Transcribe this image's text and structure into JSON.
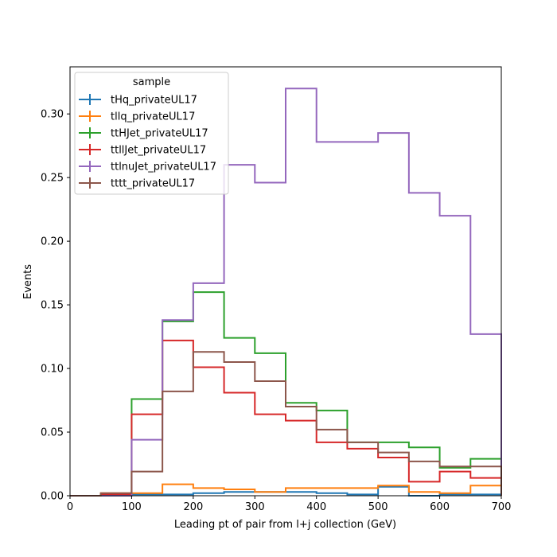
{
  "chart_data": {
    "type": "line",
    "title": "",
    "xlabel": "Leading pt of pair from l+j collection (GeV)",
    "ylabel": "Events",
    "xlim": [
      0,
      700
    ],
    "ylim": [
      0,
      0.337
    ],
    "xticks": [
      0,
      100,
      200,
      300,
      400,
      500,
      600,
      700
    ],
    "yticks": [
      0.0,
      0.05,
      0.1,
      0.15,
      0.2,
      0.25,
      0.3
    ],
    "ytick_labels": [
      "0.00",
      "0.05",
      "0.10",
      "0.15",
      "0.20",
      "0.25",
      "0.30"
    ],
    "grid": false,
    "legend": {
      "title": "sample",
      "position": "top-left"
    },
    "bin_edges": [
      0,
      50,
      100,
      150,
      200,
      250,
      300,
      350,
      400,
      450,
      500,
      550,
      600,
      650,
      700
    ],
    "series": [
      {
        "name": "tHq_privateUL17",
        "color": "#1f77b4",
        "values": [
          0.0,
          0.0,
          0.001,
          0.001,
          0.002,
          0.003,
          0.003,
          0.003,
          0.002,
          0.001,
          0.007,
          0.0,
          0.001,
          0.001
        ]
      },
      {
        "name": "tllq_privateUL17",
        "color": "#ff7f0e",
        "values": [
          0.0,
          0.002,
          0.002,
          0.009,
          0.006,
          0.005,
          0.003,
          0.006,
          0.006,
          0.006,
          0.008,
          0.003,
          0.002,
          0.008
        ]
      },
      {
        "name": "ttHJet_privateUL17",
        "color": "#2ca02c",
        "values": [
          0.0,
          0.001,
          0.076,
          0.137,
          0.16,
          0.124,
          0.112,
          0.073,
          0.067,
          0.042,
          0.042,
          0.038,
          0.022,
          0.029
        ]
      },
      {
        "name": "ttllJet_privateUL17",
        "color": "#d62728",
        "values": [
          0.0,
          0.001,
          0.064,
          0.122,
          0.101,
          0.081,
          0.064,
          0.059,
          0.042,
          0.037,
          0.03,
          0.011,
          0.019,
          0.014
        ]
      },
      {
        "name": "ttlnuJet_privateUL17",
        "color": "#9467bd",
        "values": [
          0.0,
          0.0,
          0.044,
          0.138,
          0.167,
          0.26,
          0.246,
          0.32,
          0.278,
          0.278,
          0.285,
          0.238,
          0.22,
          0.127
        ]
      },
      {
        "name": "tttt_privateUL17",
        "color": "#8c564b",
        "values": [
          0.0,
          0.002,
          0.019,
          0.082,
          0.113,
          0.105,
          0.09,
          0.07,
          0.052,
          0.042,
          0.034,
          0.027,
          0.023,
          0.023
        ]
      }
    ]
  }
}
